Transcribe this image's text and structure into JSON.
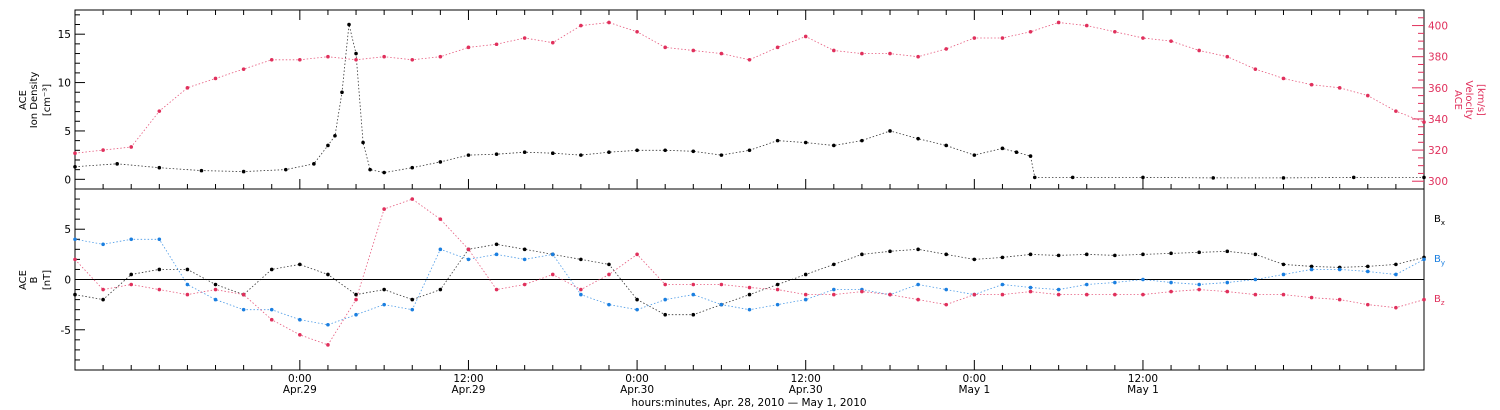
{
  "colors": {
    "axis": "#000000",
    "velocity": "#e0305c",
    "density": "#000000",
    "bx": "#000000",
    "by": "#1b7fe0",
    "bz": "#e0305c"
  },
  "panel_top": {
    "left_ylabel": [
      "ACE",
      "Ion Density",
      "[cm⁻³]"
    ],
    "right_ylabel": [
      "ACE",
      "Velocity",
      "[km/s]"
    ]
  },
  "panel_bottom": {
    "ylabel": [
      "ACE",
      "B",
      "[nT]"
    ],
    "legend": [
      "Bx",
      "By",
      "Bz"
    ]
  },
  "x_axis": {
    "title": "hours:minutes, Apr. 28, 2010 — May  1, 2010",
    "ticks": [
      {
        "time": "0:00",
        "date": "Apr.29"
      },
      {
        "time": "12:00",
        "date": "Apr.29"
      },
      {
        "time": "0:00",
        "date": "Apr.30"
      },
      {
        "time": "12:00",
        "date": "Apr.30"
      },
      {
        "time": "0:00",
        "date": "May 1"
      },
      {
        "time": "12:00",
        "date": "May 1"
      }
    ]
  },
  "chart_data": [
    {
      "type": "scatter",
      "title": "",
      "xlabel": "hours:minutes, Apr. 28, 2010 — May  1, 2010",
      "xlim": [
        -16,
        80
      ],
      "ylabel": "ACE Ion Density [cm⁻³]",
      "ylim": [
        -1,
        17.5
      ],
      "y_ticks": [
        0,
        5,
        10,
        15
      ],
      "y2label": "ACE Velocity [km/s]",
      "y2lim": [
        295,
        410
      ],
      "y2_ticks": [
        300,
        320,
        340,
        360,
        380,
        400
      ],
      "series": [
        {
          "name": "Ion Density",
          "axis": "left",
          "color": "#000000",
          "x": [
            -16,
            -13,
            -10,
            -7,
            -4,
            -1,
            1,
            2,
            2.5,
            3,
            3.5,
            4,
            4.5,
            5,
            6,
            8,
            10,
            12,
            14,
            16,
            18,
            20,
            22,
            24,
            26,
            28,
            30,
            32,
            34,
            36,
            38,
            40,
            42,
            44,
            46,
            48,
            50,
            51,
            52,
            52.3,
            55,
            60,
            65,
            70,
            75,
            80
          ],
          "y": [
            1.3,
            1.6,
            1.2,
            0.9,
            0.8,
            1.0,
            1.6,
            3.5,
            4.5,
            9.0,
            16.0,
            13.0,
            3.8,
            1.0,
            0.7,
            1.2,
            1.8,
            2.5,
            2.6,
            2.8,
            2.7,
            2.5,
            2.8,
            3.0,
            3.0,
            2.9,
            2.5,
            3.0,
            4.0,
            3.8,
            3.5,
            4.0,
            5.0,
            4.2,
            3.5,
            2.5,
            3.2,
            2.8,
            2.4,
            0.2,
            0.2,
            0.2,
            0.15,
            0.15,
            0.2,
            0.2
          ]
        },
        {
          "name": "Velocity",
          "axis": "right",
          "color": "#e0305c",
          "x": [
            -16,
            -14,
            -12,
            -10,
            -8,
            -6,
            -4,
            -2,
            0,
            2,
            4,
            6,
            8,
            10,
            12,
            14,
            16,
            18,
            20,
            22,
            24,
            26,
            28,
            30,
            32,
            34,
            36,
            38,
            40,
            42,
            44,
            46,
            48,
            50,
            52,
            54,
            56,
            58,
            60,
            62,
            64,
            66,
            68,
            70,
            72,
            74,
            76,
            78,
            80
          ],
          "y": [
            318,
            320,
            322,
            345,
            360,
            366,
            372,
            378,
            378,
            380,
            378,
            380,
            378,
            380,
            386,
            388,
            392,
            389,
            400,
            402,
            396,
            386,
            384,
            382,
            378,
            386,
            393,
            384,
            382,
            382,
            380,
            385,
            392,
            392,
            396,
            402,
            400,
            396,
            392,
            390,
            384,
            380,
            372,
            366,
            362,
            360,
            355,
            345,
            338
          ]
        }
      ]
    },
    {
      "type": "scatter",
      "title": "",
      "xlabel": "hours:minutes, Apr. 28, 2010 — May  1, 2010",
      "xlim": [
        -16,
        80
      ],
      "ylabel": "ACE B [nT]",
      "ylim": [
        -9,
        9
      ],
      "y_ticks": [
        -5,
        0,
        5
      ],
      "series": [
        {
          "name": "Bx",
          "color": "#000000",
          "x": [
            -16,
            -14,
            -12,
            -10,
            -8,
            -6,
            -4,
            -2,
            0,
            2,
            4,
            6,
            8,
            10,
            12,
            14,
            16,
            18,
            20,
            22,
            24,
            26,
            28,
            30,
            32,
            34,
            36,
            38,
            40,
            42,
            44,
            46,
            48,
            50,
            52,
            54,
            56,
            58,
            60,
            62,
            64,
            66,
            68,
            70,
            72,
            74,
            76,
            78,
            80
          ],
          "y": [
            -1.5,
            -2.0,
            0.5,
            1.0,
            1.0,
            -0.5,
            -1.5,
            1.0,
            1.5,
            0.5,
            -1.5,
            -1.0,
            -2.0,
            -1.0,
            3.0,
            3.5,
            3.0,
            2.5,
            2.0,
            1.5,
            -2.0,
            -3.5,
            -3.5,
            -2.5,
            -1.5,
            -0.5,
            0.5,
            1.5,
            2.5,
            2.8,
            3.0,
            2.5,
            2.0,
            2.2,
            2.5,
            2.4,
            2.5,
            2.4,
            2.5,
            2.6,
            2.7,
            2.8,
            2.5,
            1.5,
            1.3,
            1.2,
            1.3,
            1.5,
            2.2
          ]
        },
        {
          "name": "By",
          "color": "#1b7fe0",
          "x": [
            -16,
            -14,
            -12,
            -10,
            -8,
            -6,
            -4,
            -2,
            0,
            2,
            4,
            6,
            8,
            10,
            12,
            14,
            16,
            18,
            20,
            22,
            24,
            26,
            28,
            30,
            32,
            34,
            36,
            38,
            40,
            42,
            44,
            46,
            48,
            50,
            52,
            54,
            56,
            58,
            60,
            62,
            64,
            66,
            68,
            70,
            72,
            74,
            76,
            78,
            80
          ],
          "y": [
            4.0,
            3.5,
            4.0,
            4.0,
            -0.5,
            -2.0,
            -3.0,
            -3.0,
            -4.0,
            -4.5,
            -3.5,
            -2.5,
            -3.0,
            3.0,
            2.0,
            2.5,
            2.0,
            2.5,
            -1.5,
            -2.5,
            -3.0,
            -2.0,
            -1.5,
            -2.5,
            -3.0,
            -2.5,
            -2.0,
            -1.0,
            -1.0,
            -1.5,
            -0.5,
            -1.0,
            -1.5,
            -0.5,
            -0.8,
            -1.0,
            -0.5,
            -0.3,
            0.0,
            -0.3,
            -0.5,
            -0.3,
            0.0,
            0.5,
            1.0,
            1.0,
            0.8,
            0.5,
            2.0
          ]
        },
        {
          "name": "Bz",
          "color": "#e0305c",
          "x": [
            -16,
            -14,
            -12,
            -10,
            -8,
            -6,
            -4,
            -2,
            0,
            2,
            4,
            6,
            8,
            10,
            12,
            14,
            16,
            18,
            20,
            22,
            24,
            26,
            28,
            30,
            32,
            34,
            36,
            38,
            40,
            42,
            44,
            46,
            48,
            50,
            52,
            54,
            56,
            58,
            60,
            62,
            64,
            66,
            68,
            70,
            72,
            74,
            76,
            78,
            80
          ],
          "y": [
            2.0,
            -1.0,
            -0.5,
            -1.0,
            -1.5,
            -1.0,
            -1.5,
            -4.0,
            -5.5,
            -6.5,
            -2.0,
            7.0,
            8.0,
            6.0,
            3.0,
            -1.0,
            -0.5,
            0.5,
            -1.0,
            0.5,
            2.5,
            -0.5,
            -0.5,
            -0.5,
            -0.8,
            -1.0,
            -1.5,
            -1.5,
            -1.2,
            -1.5,
            -2.0,
            -2.5,
            -1.5,
            -1.5,
            -1.2,
            -1.5,
            -1.5,
            -1.5,
            -1.5,
            -1.2,
            -1.0,
            -1.2,
            -1.5,
            -1.5,
            -1.8,
            -2.0,
            -2.5,
            -2.8,
            -2.0
          ]
        }
      ]
    }
  ]
}
